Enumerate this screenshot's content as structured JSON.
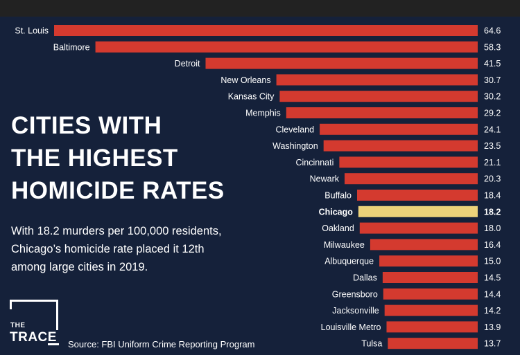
{
  "headline": {
    "line1": "CITIES WITH",
    "line2": "THE HIGHEST",
    "line3": "HOMICIDE RATES"
  },
  "subtext": {
    "line1": "With 18.2 murders per 100,000 residents,",
    "line2": "Chicago’s homicide rate placed it 12th",
    "line3": "among large cities in 2019."
  },
  "logo": {
    "the": "THE",
    "trace": "TRACE"
  },
  "source": "Source: FBI Uniform Crime Reporting Program",
  "colors": {
    "bar": "#d43a2f",
    "highlight": "#ecd27a",
    "background": "#15213a",
    "text": "#ffffff"
  },
  "chart_data": {
    "type": "bar",
    "orientation": "horizontal",
    "categories": [
      "St. Louis",
      "Baltimore",
      "Detroit",
      "New Orleans",
      "Kansas City",
      "Memphis",
      "Cleveland",
      "Washington",
      "Cincinnati",
      "Newark",
      "Buffalo",
      "Chicago",
      "Oakland",
      "Milwaukee",
      "Albuquerque",
      "Dallas",
      "Greensboro",
      "Jacksonville",
      "Louisville Metro",
      "Tulsa"
    ],
    "values": [
      64.6,
      58.3,
      41.5,
      30.7,
      30.2,
      29.2,
      24.1,
      23.5,
      21.1,
      20.3,
      18.4,
      18.2,
      18.0,
      16.4,
      15.0,
      14.5,
      14.4,
      14.2,
      13.9,
      13.7
    ],
    "value_labels": [
      "64.6",
      "58.3",
      "41.5",
      "30.7",
      "30.2",
      "29.2",
      "24.1",
      "23.5",
      "21.1",
      "20.3",
      "18.4",
      "18.2",
      "18.0",
      "16.4",
      "15.0",
      "14.5",
      "14.4",
      "14.2",
      "13.9",
      "13.7"
    ],
    "highlight": "Chicago",
    "title": "CITIES WITH THE HIGHEST HOMICIDE RATES",
    "xlabel": "",
    "ylabel": "",
    "xlim": [
      0,
      64.6
    ],
    "grid": false,
    "legend": "none"
  }
}
